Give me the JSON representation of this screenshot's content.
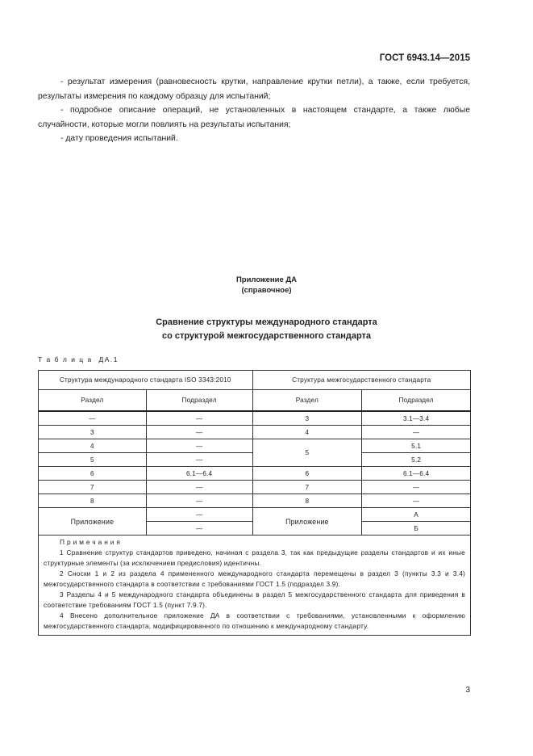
{
  "header": {
    "doc_id": "ГОСТ 6943.14—2015"
  },
  "body": {
    "items": [
      "- результат измерения (равновесность крутки, направление крутки петли), а также, если требуется, результаты измерения по каждому образцу для испытаний;",
      "- подробное описание операций, не установленных в настоящем стандарте, а также любые случайности, которые могли повлиять на результаты испытания;",
      "- дату проведения испытаний."
    ]
  },
  "appendix": {
    "title": "Приложение ДА",
    "subtitle": "(справочное)",
    "heading_line1": "Сравнение структуры международного стандарта",
    "heading_line2": "со структурой межгосударственного стандарта",
    "table_label": "Т а б л и ц а  ДА.1"
  },
  "table": {
    "group_headers": [
      "Структура международного стандарта ISO 3343:2010",
      "Структура межгосударственного стандарта"
    ],
    "col_headers": [
      "Раздел",
      "Подраздел",
      "Раздел",
      "Подраздел"
    ],
    "rows": [
      [
        "—",
        "—",
        "3",
        "3.1—3.4"
      ],
      [
        "3",
        "—",
        "4",
        "—"
      ],
      [
        "4",
        "—",
        "5",
        "5.1"
      ],
      [
        "5",
        "—",
        "",
        "5.2"
      ],
      [
        "6",
        "6.1—6.4",
        "6",
        "6.1—6.4"
      ],
      [
        "7",
        "—",
        "7",
        "—"
      ],
      [
        "8",
        "—",
        "8",
        "—"
      ]
    ],
    "annex_row": {
      "label_left": "Приложение",
      "sub_left": [
        "—",
        "—"
      ],
      "label_right": "Приложение",
      "sub_right": [
        "А",
        "Б"
      ]
    },
    "notes_title": "Примечания",
    "notes": [
      "1 Сравнение структур стандартов приведено, начиная с раздела 3, так как предыдущие разделы стандартов и их иные структурные элементы (за исключением предисловия) идентичны.",
      "2 Сноски 1 и 2 из раздела 4 примененного международного стандарта перемещены в раздел 3 (пункты 3.3 и 3.4) межгосударственного стандарта в соответствии с требованиями ГОСТ 1.5 (подраздел 3.9).",
      "3 Разделы 4 и 5 международного стандарта объединены в раздел 5 межгосударственного стандарта для приведения в соответствие требованиям ГОСТ 1.5 (пункт 7.9.7).",
      "4 Внесено дополнительное приложение ДА в соответствии с требованиями, установленными к оформлению межгосударственного стандарта, модифицированного по отношению к международному стандарту."
    ]
  },
  "footer": {
    "page_number": "3"
  }
}
